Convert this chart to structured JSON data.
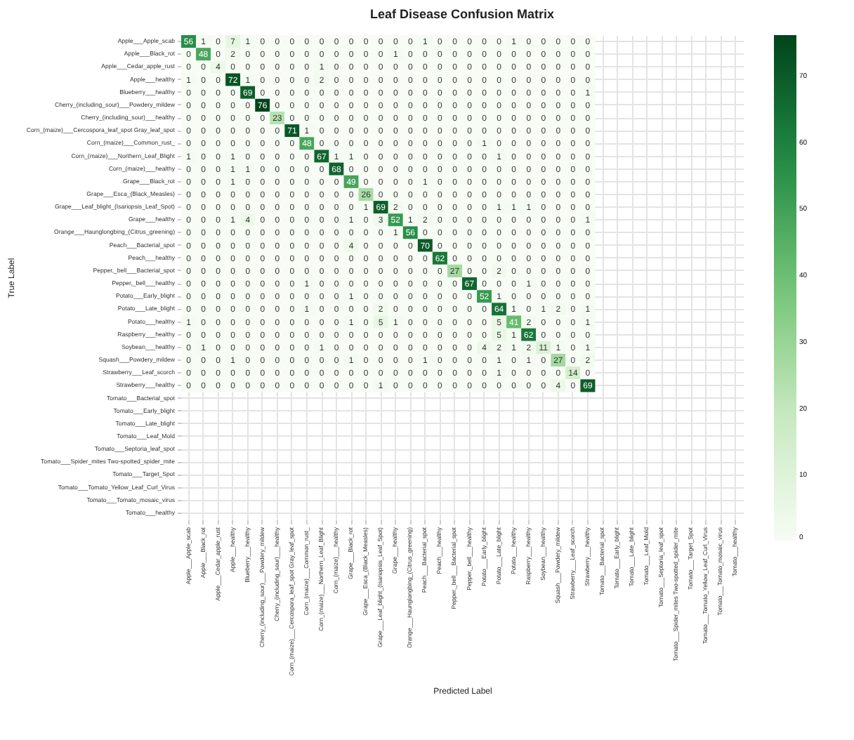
{
  "chart_data": {
    "type": "heatmap",
    "title": "Leaf Disease Confusion Matrix",
    "xlabel": "Predicted Label",
    "ylabel": "True Label",
    "categories": [
      "Apple___Apple_scab",
      "Apple___Black_rot",
      "Apple___Cedar_apple_rust",
      "Apple___healthy",
      "Blueberry___healthy",
      "Cherry_(including_sour)___Powdery_mildew",
      "Cherry_(including_sour)___healthy",
      "Corn_(maize)___Cercospora_leaf_spot Gray_leaf_spot",
      "Corn_(maize)___Common_rust_",
      "Corn_(maize)___Northern_Leaf_Blight",
      "Corn_(maize)___healthy",
      "Grape___Black_rot",
      "Grape___Esca_(Black_Measles)",
      "Grape___Leaf_blight_(Isariopsis_Leaf_Spot)",
      "Grape___healthy",
      "Orange___Haunglongbing_(Citrus_greening)",
      "Peach___Bacterial_spot",
      "Peach___healthy",
      "Pepper,_bell___Bacterial_spot",
      "Pepper,_bell___healthy",
      "Potato___Early_blight",
      "Potato___Late_blight",
      "Potato___healthy",
      "Raspberry___healthy",
      "Soybean___healthy",
      "Squash___Powdery_mildew",
      "Strawberry___Leaf_scorch",
      "Strawberry___healthy",
      "Tomato___Bacterial_spot",
      "Tomato___Early_blight",
      "Tomato___Late_blight",
      "Tomato___Leaf_Mold",
      "Tomato___Septoria_leaf_spot",
      "Tomato___Spider_mites Two-spotted_spider_mite",
      "Tomato___Target_Spot",
      "Tomato___Tomato_Yellow_Leaf_Curl_Virus",
      "Tomato___Tomato_mosaic_virus",
      "Tomato___healthy"
    ],
    "y_categories": [
      "Apple___Apple_scab",
      "Apple___Black_rot",
      "Apple___Cedar_apple_rust",
      "Apple___healthy",
      "Blueberry___healthy",
      "Cherry_(including_sour)___Powdery_mildew",
      "Cherry_(including_sour)___healthy",
      "Corn_(maize)___Cercospora_leaf_spot Gray_leaf_spot",
      "Corn_(maize)___Common_rust_",
      "Corn_(maize)___Northern_Leaf_Blight",
      "Corn_(maize)___healthy",
      "Grape___Black_rot",
      "Grape___Esca_(Black_Measles)",
      "Grape___Leaf_blight_(Isariopsis_Leaf_Spot)",
      "Grape___healthy",
      "Orange___Haunglongbing_(Citrus_greening)",
      "Peach___Bacterial_spot",
      "Peach___healthy",
      "Pepper,_bell___Bacterial_spot",
      "Pepper,_bell___healthy",
      "Potato___Early_blight",
      "Potato___Late_blight",
      "Potato___healthy",
      "Raspberry___healthy",
      "Soybean___healthy",
      "Squash___Powdery_mildew",
      "Strawberry___Leaf_scorch",
      "Strawberry___healthy",
      "Tomato___Bacterial_spot",
      "Tomato___Early_blight",
      "Tomato___Late_blight",
      "Tomato___Leaf_Mold",
      "Tomato___Septoria_leaf_spot",
      "Tomato___Spider_mites Two-spotted_spider_mite",
      "Tomato___Target_Spot",
      "Tomato___Tomato_Yellow_Leaf_Curl_Virus",
      "Tomato___Tomato_mosaic_virus",
      "Tomato___healthy"
    ],
    "cells": [
      [
        56,
        1,
        0,
        7,
        1,
        0,
        0,
        0,
        0,
        0,
        0,
        0,
        0,
        0,
        0,
        0,
        1,
        0,
        0,
        0,
        0,
        0,
        1,
        0,
        0,
        0,
        0,
        0,
        null,
        null,
        null,
        null,
        null,
        null,
        null,
        null,
        null,
        null
      ],
      [
        0,
        48,
        0,
        2,
        0,
        0,
        0,
        0,
        0,
        0,
        0,
        0,
        0,
        0,
        1,
        0,
        0,
        0,
        0,
        0,
        0,
        0,
        0,
        0,
        0,
        0,
        0,
        0,
        null,
        null,
        null,
        null,
        null,
        null,
        null,
        null,
        null,
        null
      ],
      [
        0,
        0,
        4,
        0,
        0,
        0,
        0,
        0,
        0,
        1,
        0,
        0,
        0,
        0,
        0,
        0,
        0,
        0,
        0,
        0,
        0,
        0,
        0,
        0,
        0,
        0,
        0,
        0,
        null,
        null,
        null,
        null,
        null,
        null,
        null,
        null,
        null,
        null
      ],
      [
        1,
        0,
        0,
        72,
        1,
        0,
        0,
        0,
        0,
        2,
        0,
        0,
        0,
        0,
        0,
        0,
        0,
        0,
        0,
        0,
        0,
        0,
        0,
        0,
        0,
        0,
        0,
        0,
        null,
        null,
        null,
        null,
        null,
        null,
        null,
        null,
        null,
        null
      ],
      [
        0,
        0,
        0,
        0,
        69,
        0,
        0,
        0,
        0,
        0,
        0,
        0,
        0,
        0,
        0,
        0,
        0,
        0,
        0,
        0,
        0,
        0,
        0,
        0,
        0,
        0,
        0,
        1,
        null,
        null,
        null,
        null,
        null,
        null,
        null,
        null,
        null,
        null
      ],
      [
        0,
        0,
        0,
        0,
        0,
        76,
        0,
        0,
        0,
        0,
        0,
        0,
        0,
        0,
        0,
        0,
        0,
        0,
        0,
        0,
        0,
        0,
        0,
        0,
        0,
        0,
        0,
        0,
        null,
        null,
        null,
        null,
        null,
        null,
        null,
        null,
        null,
        null
      ],
      [
        0,
        0,
        0,
        0,
        0,
        0,
        23,
        0,
        0,
        0,
        0,
        0,
        0,
        0,
        0,
        0,
        0,
        0,
        0,
        0,
        0,
        0,
        0,
        0,
        0,
        0,
        0,
        0,
        null,
        null,
        null,
        null,
        null,
        null,
        null,
        null,
        null,
        null
      ],
      [
        0,
        0,
        0,
        0,
        0,
        0,
        0,
        71,
        1,
        0,
        0,
        0,
        0,
        0,
        0,
        0,
        0,
        0,
        0,
        0,
        0,
        0,
        0,
        0,
        0,
        0,
        0,
        0,
        null,
        null,
        null,
        null,
        null,
        null,
        null,
        null,
        null,
        null
      ],
      [
        0,
        0,
        0,
        0,
        0,
        0,
        0,
        0,
        48,
        0,
        0,
        0,
        0,
        0,
        0,
        0,
        0,
        0,
        0,
        0,
        1,
        0,
        0,
        0,
        0,
        0,
        0,
        0,
        null,
        null,
        null,
        null,
        null,
        null,
        null,
        null,
        null,
        null
      ],
      [
        1,
        0,
        0,
        1,
        0,
        0,
        0,
        0,
        0,
        67,
        1,
        1,
        0,
        0,
        0,
        0,
        0,
        0,
        0,
        0,
        0,
        1,
        0,
        0,
        0,
        0,
        0,
        0,
        null,
        null,
        null,
        null,
        null,
        null,
        null,
        null,
        null,
        null
      ],
      [
        0,
        0,
        0,
        1,
        1,
        0,
        0,
        0,
        0,
        0,
        68,
        0,
        0,
        0,
        0,
        0,
        0,
        0,
        0,
        0,
        0,
        0,
        0,
        0,
        0,
        0,
        0,
        0,
        null,
        null,
        null,
        null,
        null,
        null,
        null,
        null,
        null,
        null
      ],
      [
        0,
        0,
        0,
        1,
        0,
        0,
        0,
        0,
        0,
        0,
        0,
        49,
        0,
        0,
        0,
        0,
        1,
        0,
        0,
        0,
        0,
        0,
        0,
        0,
        0,
        0,
        0,
        0,
        null,
        null,
        null,
        null,
        null,
        null,
        null,
        null,
        null,
        null
      ],
      [
        0,
        0,
        0,
        0,
        0,
        0,
        0,
        0,
        0,
        0,
        0,
        0,
        26,
        0,
        0,
        0,
        0,
        0,
        0,
        0,
        0,
        0,
        0,
        0,
        0,
        0,
        0,
        0,
        null,
        null,
        null,
        null,
        null,
        null,
        null,
        null,
        null,
        null
      ],
      [
        0,
        0,
        0,
        0,
        0,
        0,
        0,
        0,
        0,
        0,
        0,
        0,
        1,
        69,
        2,
        0,
        0,
        0,
        0,
        0,
        0,
        1,
        1,
        1,
        0,
        0,
        0,
        0,
        null,
        null,
        null,
        null,
        null,
        null,
        null,
        null,
        null,
        null
      ],
      [
        0,
        0,
        0,
        1,
        4,
        0,
        0,
        0,
        0,
        0,
        0,
        1,
        0,
        3,
        52,
        1,
        2,
        0,
        0,
        0,
        0,
        0,
        0,
        0,
        0,
        0,
        0,
        1,
        null,
        null,
        null,
        null,
        null,
        null,
        null,
        null,
        null,
        null
      ],
      [
        0,
        0,
        0,
        0,
        0,
        0,
        0,
        0,
        0,
        0,
        0,
        0,
        0,
        0,
        1,
        56,
        0,
        0,
        0,
        0,
        0,
        0,
        0,
        0,
        0,
        0,
        0,
        0,
        null,
        null,
        null,
        null,
        null,
        null,
        null,
        null,
        null,
        null
      ],
      [
        0,
        0,
        0,
        0,
        0,
        0,
        0,
        0,
        0,
        0,
        0,
        4,
        0,
        0,
        0,
        0,
        70,
        0,
        0,
        0,
        0,
        0,
        0,
        0,
        0,
        0,
        0,
        0,
        null,
        null,
        null,
        null,
        null,
        null,
        null,
        null,
        null,
        null
      ],
      [
        0,
        0,
        0,
        0,
        0,
        0,
        0,
        0,
        0,
        0,
        0,
        0,
        0,
        0,
        0,
        0,
        0,
        62,
        0,
        0,
        0,
        0,
        0,
        0,
        0,
        0,
        0,
        0,
        null,
        null,
        null,
        null,
        null,
        null,
        null,
        null,
        null,
        null
      ],
      [
        0,
        0,
        0,
        0,
        0,
        0,
        0,
        0,
        0,
        0,
        0,
        0,
        0,
        0,
        0,
        0,
        0,
        0,
        27,
        0,
        0,
        2,
        0,
        0,
        0,
        0,
        0,
        0,
        null,
        null,
        null,
        null,
        null,
        null,
        null,
        null,
        null,
        null
      ],
      [
        0,
        0,
        0,
        0,
        0,
        0,
        0,
        0,
        1,
        0,
        0,
        0,
        0,
        0,
        0,
        0,
        0,
        0,
        0,
        67,
        0,
        0,
        0,
        1,
        0,
        0,
        0,
        0,
        null,
        null,
        null,
        null,
        null,
        null,
        null,
        null,
        null,
        null
      ],
      [
        0,
        0,
        0,
        0,
        0,
        0,
        0,
        0,
        0,
        0,
        0,
        1,
        0,
        0,
        0,
        0,
        0,
        0,
        0,
        0,
        52,
        1,
        0,
        0,
        0,
        0,
        0,
        0,
        null,
        null,
        null,
        null,
        null,
        null,
        null,
        null,
        null,
        null
      ],
      [
        0,
        0,
        0,
        0,
        0,
        0,
        0,
        0,
        1,
        0,
        0,
        0,
        0,
        2,
        0,
        0,
        0,
        0,
        0,
        0,
        0,
        64,
        1,
        0,
        1,
        2,
        0,
        1,
        null,
        null,
        null,
        null,
        null,
        null,
        null,
        null,
        null,
        null
      ],
      [
        1,
        0,
        0,
        0,
        0,
        0,
        0,
        0,
        0,
        0,
        0,
        1,
        0,
        5,
        1,
        0,
        0,
        0,
        0,
        0,
        0,
        5,
        41,
        2,
        0,
        0,
        0,
        1,
        null,
        null,
        null,
        null,
        null,
        null,
        null,
        null,
        null,
        null
      ],
      [
        0,
        0,
        0,
        0,
        0,
        0,
        0,
        0,
        0,
        0,
        0,
        0,
        0,
        0,
        0,
        0,
        0,
        0,
        0,
        0,
        0,
        5,
        1,
        62,
        0,
        0,
        0,
        0,
        null,
        null,
        null,
        null,
        null,
        null,
        null,
        null,
        null,
        null
      ],
      [
        0,
        1,
        0,
        0,
        0,
        0,
        0,
        0,
        0,
        1,
        0,
        0,
        0,
        0,
        0,
        0,
        0,
        0,
        0,
        0,
        4,
        2,
        1,
        2,
        11,
        1,
        0,
        1,
        null,
        null,
        null,
        null,
        null,
        null,
        null,
        null,
        null,
        null
      ],
      [
        0,
        0,
        0,
        1,
        0,
        0,
        0,
        0,
        0,
        0,
        0,
        1,
        0,
        0,
        0,
        0,
        1,
        0,
        0,
        0,
        0,
        1,
        0,
        1,
        0,
        27,
        0,
        2,
        null,
        null,
        null,
        null,
        null,
        null,
        null,
        null,
        null,
        null
      ],
      [
        0,
        0,
        0,
        0,
        0,
        0,
        0,
        0,
        0,
        0,
        0,
        0,
        0,
        0,
        0,
        0,
        0,
        0,
        0,
        0,
        0,
        1,
        0,
        0,
        0,
        0,
        14,
        0,
        null,
        null,
        null,
        null,
        null,
        null,
        null,
        null,
        null,
        null
      ],
      [
        0,
        0,
        0,
        0,
        0,
        0,
        0,
        0,
        0,
        0,
        0,
        0,
        0,
        1,
        0,
        0,
        0,
        0,
        0,
        0,
        0,
        0,
        0,
        0,
        0,
        4,
        0,
        69,
        null,
        null,
        null,
        null,
        null,
        null,
        null,
        null,
        null,
        null
      ],
      [
        null,
        null,
        null,
        null,
        null,
        null,
        null,
        null,
        null,
        null,
        null,
        null,
        null,
        null,
        null,
        null,
        null,
        null,
        null,
        null,
        null,
        null,
        null,
        null,
        null,
        null,
        null,
        null,
        null,
        null,
        null,
        null,
        null,
        null,
        null,
        null,
        null,
        null
      ],
      [
        null,
        null,
        null,
        null,
        null,
        null,
        null,
        null,
        null,
        null,
        null,
        null,
        null,
        null,
        null,
        null,
        null,
        null,
        null,
        null,
        null,
        null,
        null,
        null,
        null,
        null,
        null,
        null,
        null,
        null,
        null,
        null,
        null,
        null,
        null,
        null,
        null,
        null
      ],
      [
        null,
        null,
        null,
        null,
        null,
        null,
        null,
        null,
        null,
        null,
        null,
        null,
        null,
        null,
        null,
        null,
        null,
        null,
        null,
        null,
        null,
        null,
        null,
        null,
        null,
        null,
        null,
        null,
        null,
        null,
        null,
        null,
        null,
        null,
        null,
        null,
        null,
        null
      ],
      [
        null,
        null,
        null,
        null,
        null,
        null,
        null,
        null,
        null,
        null,
        null,
        null,
        null,
        null,
        null,
        null,
        null,
        null,
        null,
        null,
        null,
        null,
        null,
        null,
        null,
        null,
        null,
        null,
        null,
        null,
        null,
        null,
        null,
        null,
        null,
        null,
        null,
        null
      ],
      [
        null,
        null,
        null,
        null,
        null,
        null,
        null,
        null,
        null,
        null,
        null,
        null,
        null,
        null,
        null,
        null,
        null,
        null,
        null,
        null,
        null,
        null,
        null,
        null,
        null,
        null,
        null,
        null,
        null,
        null,
        null,
        null,
        null,
        null,
        null,
        null,
        null,
        null
      ],
      [
        null,
        null,
        null,
        null,
        null,
        null,
        null,
        null,
        null,
        null,
        null,
        null,
        null,
        null,
        null,
        null,
        null,
        null,
        null,
        null,
        null,
        null,
        null,
        null,
        null,
        null,
        null,
        null,
        null,
        null,
        null,
        null,
        null,
        null,
        null,
        null,
        null,
        null
      ],
      [
        null,
        null,
        null,
        null,
        null,
        null,
        null,
        null,
        null,
        null,
        null,
        null,
        null,
        null,
        null,
        null,
        null,
        null,
        null,
        null,
        null,
        null,
        null,
        null,
        null,
        null,
        null,
        null,
        null,
        null,
        null,
        null,
        null,
        null,
        null,
        null,
        null,
        null
      ],
      [
        null,
        null,
        null,
        null,
        null,
        null,
        null,
        null,
        null,
        null,
        null,
        null,
        null,
        null,
        null,
        null,
        null,
        null,
        null,
        null,
        null,
        null,
        null,
        null,
        null,
        null,
        null,
        null,
        null,
        null,
        null,
        null,
        null,
        null,
        null,
        null,
        null,
        null
      ],
      [
        null,
        null,
        null,
        null,
        null,
        null,
        null,
        null,
        null,
        null,
        null,
        null,
        null,
        null,
        null,
        null,
        null,
        null,
        null,
        null,
        null,
        null,
        null,
        null,
        null,
        null,
        null,
        null,
        null,
        null,
        null,
        null,
        null,
        null,
        null,
        null,
        null,
        null
      ],
      [
        null,
        null,
        null,
        null,
        null,
        null,
        null,
        null,
        null,
        null,
        null,
        null,
        null,
        null,
        null,
        null,
        null,
        null,
        null,
        null,
        null,
        null,
        null,
        null,
        null,
        null,
        null,
        null,
        null,
        null,
        null,
        null,
        null,
        null,
        null,
        null,
        null,
        null
      ]
    ],
    "clim": [
      0,
      76
    ],
    "cticks": [
      0,
      10,
      20,
      30,
      40,
      50,
      60,
      70
    ],
    "data_labels": true,
    "grid": true
  }
}
